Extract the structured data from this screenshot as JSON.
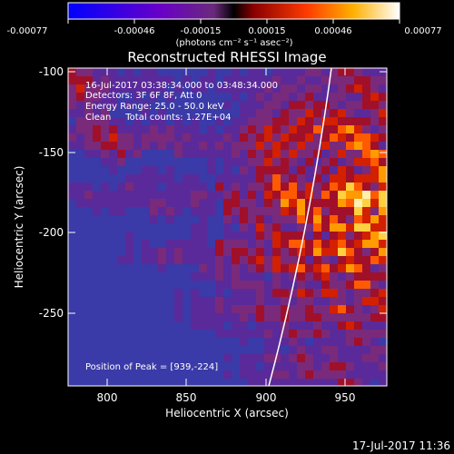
{
  "colorbar": {
    "ticks": [
      "-0.00077",
      "-0.00046",
      "-0.00015",
      "0.00015",
      "0.00046",
      "0.00077"
    ],
    "unit_label": "(photons cm⁻² s⁻¹ asec⁻²)",
    "colors": [
      "#0000ff",
      "#6a00c8",
      "#8f2a8e",
      "#000000",
      "#c80000",
      "#ff6a00",
      "#ffcc00",
      "#ffffff"
    ]
  },
  "image": {
    "title": "Reconstructed RHESSI Image",
    "info_lines": [
      "16-Jul-2017 03:38:34.000 to 03:48:34.000",
      "Detectors: 3F 6F 8F, Att 0",
      "Energy Range: 25.0 - 50.0 keV",
      "Clean     Total counts: 1.27E+04"
    ],
    "peak_text": "Position of Peak = [939,-224]",
    "xlabel": "Heliocentric X (arcsec)",
    "ylabel": "Heliocentric Y (arcsec)",
    "xticks": [
      "800",
      "850",
      "900",
      "950"
    ],
    "yticks": [
      "-100",
      "-150",
      "-200",
      "-250"
    ],
    "limb_color": "#ffffff"
  },
  "footer": {
    "date": "17-Jul-2017 11:36"
  }
}
